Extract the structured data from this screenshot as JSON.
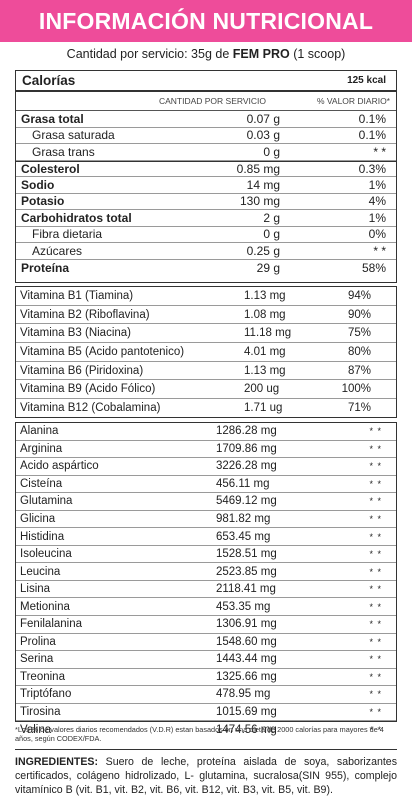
{
  "title": "INFORMACIÓN NUTRICIONAL",
  "serving": {
    "prefix": "Cantidad por servicio: 35g de",
    "product": "FEM PRO",
    "suffix": "(1 scoop)"
  },
  "calories": {
    "label": "Calorías",
    "value": "125 kcal"
  },
  "columns": {
    "amount": "CANTIDAD POR SERVICIO",
    "daily": "% VALOR DIARIO*"
  },
  "macros": [
    {
      "name": "Grasa total",
      "amount": "0.07 g",
      "dv": "0.1%"
    },
    {
      "name": "Grasa saturada",
      "amount": "0.03 g",
      "dv": "0.1%"
    },
    {
      "name": "Grasa trans",
      "amount": "0 g",
      "dv": "* *"
    },
    {
      "name": "Colesterol",
      "amount": "0.85 mg",
      "dv": "0.3%"
    },
    {
      "name": "Sodio",
      "amount": "14 mg",
      "dv": "1%"
    },
    {
      "name": "Potasio",
      "amount": "130 mg",
      "dv": "4%"
    },
    {
      "name": "Carbohidratos total",
      "amount": "2 g",
      "dv": "1%"
    },
    {
      "name": "Fibra dietaria",
      "amount": "0 g",
      "dv": "0%"
    },
    {
      "name": "Azúcares",
      "amount": "0.25 g",
      "dv": "* *"
    },
    {
      "name": "Proteína",
      "amount": "29 g",
      "dv": "58%"
    }
  ],
  "vitamins": [
    {
      "name": "Vitamina B1 (Tiamina)",
      "amount": "1.13 mg",
      "dv": "94%"
    },
    {
      "name": "Vitamina B2 (Riboflavina)",
      "amount": "1.08 mg",
      "dv": "90%"
    },
    {
      "name": "Vitamina B3 (Niacina)",
      "amount": "11.18 mg",
      "dv": "75%"
    },
    {
      "name": "Vitamina B5 (Ácido pantotenico)",
      "amount": "4.01 mg",
      "dv": "80%"
    },
    {
      "name": "Vitamina B6 (Piridoxina)",
      "amount": "1.13 mg",
      "dv": "87%"
    },
    {
      "name": "Vitamina B9 (Ácido Fólico)",
      "amount": "200 ug",
      "dv": "100%"
    },
    {
      "name": "Vitamina B12 (Cobalamina)",
      "amount": "1.71 ug",
      "dv": "71%"
    }
  ],
  "aminoacids": [
    {
      "name": "Alanina",
      "amount": "1286.28 mg",
      "dv": "* *"
    },
    {
      "name": "Arginina",
      "amount": "1709.86 mg",
      "dv": "* *"
    },
    {
      "name": "Ácido aspártico",
      "amount": "3226.28 mg",
      "dv": "* *"
    },
    {
      "name": "Cisteína",
      "amount": "456.11 mg",
      "dv": "* *"
    },
    {
      "name": "Glutamina",
      "amount": "5469.12 mg",
      "dv": "* *"
    },
    {
      "name": "Glicina",
      "amount": "981.82 mg",
      "dv": "* *"
    },
    {
      "name": "Histidina",
      "amount": "653.45 mg",
      "dv": "* *"
    },
    {
      "name": "Isoleucina",
      "amount": "1528.51 mg",
      "dv": "* *"
    },
    {
      "name": "Leucina",
      "amount": "2523.85 mg",
      "dv": "* *"
    },
    {
      "name": "Lisina",
      "amount": "2118.41 mg",
      "dv": "* *"
    },
    {
      "name": "Metionina",
      "amount": "453.35 mg",
      "dv": "* *"
    },
    {
      "name": "Fenilalanina",
      "amount": "1306.91 mg",
      "dv": "* *"
    },
    {
      "name": "Prolina",
      "amount": "1548.60 mg",
      "dv": "* *"
    },
    {
      "name": "Serina",
      "amount": "1443.44 mg",
      "dv": "* *"
    },
    {
      "name": "Treonina",
      "amount": "1325.66 mg",
      "dv": "* *"
    },
    {
      "name": "Triptófano",
      "amount": "478.95 mg",
      "dv": "* *"
    },
    {
      "name": "Tirosina",
      "amount": "1015.69 mg",
      "dv": "* *"
    },
    {
      "name": "Valina",
      "amount": "1474.56 mg",
      "dv": "* *"
    }
  ],
  "footnote": "*Los % de valores diarios recomendados (V.D.R) estan basados en una dieta de 2000 calorías para mayores de 4 años, según CODEX/FDA.",
  "ingredients": {
    "label": "INGREDIENTES:",
    "text": "Suero de leche, proteína aislada de soya, saborizantes certificados, colágeno hidrolizado, L- glutamina, sucralosa(SIN 955), complejo vitamínico B (vit. B1, vit. B2, vit. B6, vit. B12, vit. B3, vit. B5, vit. B9)."
  },
  "colors": {
    "accent": "#ee4c9a"
  }
}
